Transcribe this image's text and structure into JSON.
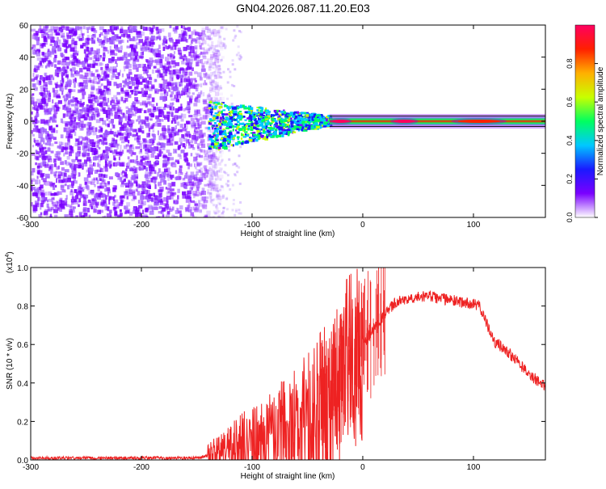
{
  "figure": {
    "title": "GN04.2026.087.11.20.E03"
  },
  "chart_data": [
    {
      "type": "heatmap",
      "xlabel": "Height of straight line (km)",
      "ylabel": "Frequency (Hz)",
      "xlim": [
        -300,
        165
      ],
      "ylim": [
        -60,
        60
      ],
      "xticks": [
        -300,
        -200,
        -100,
        0,
        100
      ],
      "xtick_labels": [
        "-300",
        "-200",
        "-100",
        "0",
        "100"
      ],
      "yticks": [
        -60,
        -40,
        -20,
        0,
        20,
        40,
        60
      ],
      "ytick_labels": [
        "-60",
        "-40",
        "-20",
        "0",
        "20",
        "40",
        "60"
      ],
      "colorbar": {
        "label": "Normalized spectral amplitude",
        "range": [
          0,
          1
        ],
        "ticks": [
          0.0,
          0.2,
          0.4,
          0.6,
          0.8
        ],
        "tick_labels": [
          "0.0",
          "0.2",
          "0.4",
          "0.6",
          "0.8"
        ],
        "colors": [
          "#ffffff",
          "#7a00ff",
          "#1a1aff",
          "#00c8ff",
          "#00ff60",
          "#c8ff00",
          "#ffb000",
          "#ff2000",
          "#ff0060"
        ]
      },
      "regions": [
        {
          "x_range": [
            -300,
            -140
          ],
          "y_range": [
            -60,
            60
          ],
          "amplitude": 0.1,
          "description": "noise"
        },
        {
          "x_range": [
            -140,
            -30
          ],
          "y_range": [
            -15,
            10
          ],
          "amplitude": 0.5
        },
        {
          "x_range": [
            -30,
            165
          ],
          "y_range": [
            -3,
            3
          ],
          "amplitude": 0.95
        }
      ]
    },
    {
      "type": "line",
      "xlabel": "Height of straight line (km)",
      "ylabel": "SNR (10 * v/v)",
      "y_multiplier": "(x10^4)",
      "y_multiplier_base": "(x10",
      "y_multiplier_exp": "4",
      "y_multiplier_close": ")",
      "xlim": [
        -300,
        165
      ],
      "ylim": [
        0,
        1.0
      ],
      "xticks": [
        -300,
        -200,
        -100,
        0,
        100
      ],
      "xtick_labels": [
        "-300",
        "-200",
        "-100",
        "0",
        "100"
      ],
      "yticks": [
        0.0,
        0.2,
        0.4,
        0.6,
        0.8,
        1.0
      ],
      "ytick_labels": [
        "0.0",
        "0.2",
        "0.4",
        "0.6",
        "0.8",
        "1.0"
      ],
      "series": [
        {
          "color": "#ee2222",
          "x": [
            -300,
            -250,
            -200,
            -150,
            -140,
            -130,
            -120,
            -110,
            -100,
            -90,
            -80,
            -70,
            -60,
            -50,
            -40,
            -30,
            -20,
            -10,
            0,
            10,
            20,
            30,
            40,
            50,
            60,
            70,
            80,
            90,
            100,
            105,
            110,
            115,
            120,
            130,
            140,
            150,
            160,
            165
          ],
          "y": [
            0.01,
            0.01,
            0.01,
            0.01,
            0.02,
            0.03,
            0.05,
            0.07,
            0.08,
            0.1,
            0.11,
            0.13,
            0.16,
            0.2,
            0.26,
            0.33,
            0.42,
            0.5,
            0.6,
            0.68,
            0.76,
            0.82,
            0.84,
            0.85,
            0.85,
            0.84,
            0.83,
            0.82,
            0.81,
            0.8,
            0.74,
            0.66,
            0.61,
            0.57,
            0.51,
            0.45,
            0.4,
            0.38
          ]
        }
      ]
    }
  ]
}
